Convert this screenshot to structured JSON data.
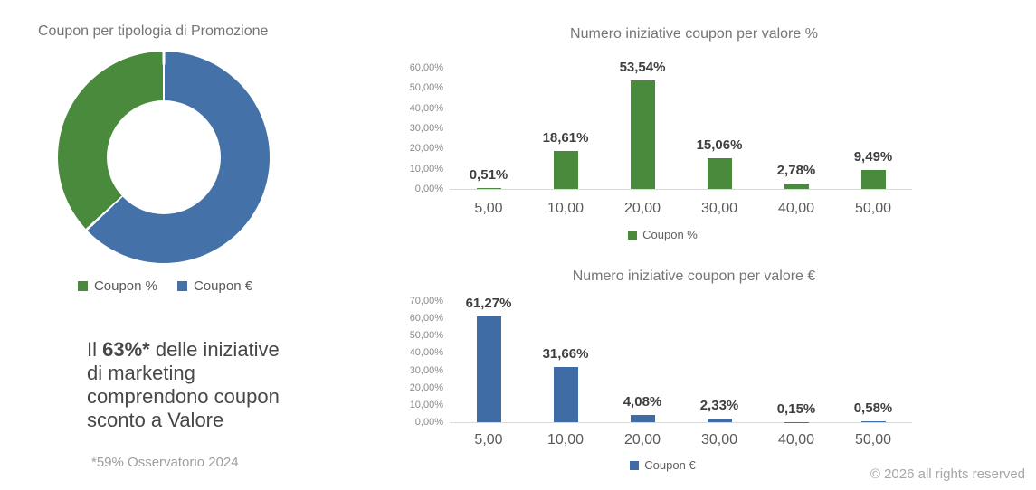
{
  "page": {
    "background": "#ffffff"
  },
  "colors": {
    "green": "#4A8A3C",
    "blue": "#3F6CA5",
    "donut_blue": "#4471A7",
    "axis_line": "#d9d9d9",
    "title_gray": "#757575",
    "tick_gray": "#8a8a8a",
    "xlabel_gray": "#595959",
    "value_label_gray": "#3f3f3f"
  },
  "donut": {
    "title": "Coupon per tipologia di Promozione",
    "legend": [
      {
        "label": "Coupon %",
        "color": "#4A8A3C"
      },
      {
        "label": "Coupon €",
        "color": "#4471A7"
      }
    ]
  },
  "headline": {
    "lead": "Il ",
    "bold": "63%*",
    "line1_rest": " delle iniziative",
    "line2": "di marketing",
    "line3": "comprendono coupon",
    "line4": "sconto a Valore"
  },
  "footnote": "*59% Osservatorio 2024",
  "footer": {
    "copyright": "© 2026 all rights reserved"
  },
  "chart_data": [
    {
      "id": "promo-donut",
      "type": "pie",
      "title": "Coupon per tipologia di Promozione",
      "legend_position": "bottom",
      "segments": [
        {
          "label": "Coupon €",
          "value": 63,
          "color": "#4471A7"
        },
        {
          "label": "Coupon %",
          "value": 37,
          "color": "#4A8A3C"
        }
      ]
    },
    {
      "id": "coupon-pct-bar",
      "type": "bar",
      "title": "Numero iniziative coupon per valore %",
      "categories": [
        "5,00",
        "10,00",
        "20,00",
        "30,00",
        "40,00",
        "50,00"
      ],
      "values": [
        0.51,
        18.61,
        53.54,
        15.06,
        2.78,
        9.49
      ],
      "value_labels": [
        "0,51%",
        "18,61%",
        "53,54%",
        "15,06%",
        "2,78%",
        "9,49%"
      ],
      "xlabel": "",
      "ylabel": "",
      "ylim": [
        0,
        60
      ],
      "ytick_labels": [
        "60,00%",
        "50,00%",
        "40,00%",
        "30,00%",
        "20,00%",
        "10,00%",
        "0,00%"
      ],
      "grid": false,
      "legend": "Coupon %",
      "legend_position": "bottom",
      "bar_color": "#4A8A3C"
    },
    {
      "id": "coupon-eur-bar",
      "type": "bar",
      "title": "Numero iniziative coupon per valore  €",
      "categories": [
        "5,00",
        "10,00",
        "20,00",
        "30,00",
        "40,00",
        "50,00"
      ],
      "values": [
        61.27,
        31.66,
        4.08,
        2.33,
        0.15,
        0.58
      ],
      "value_labels": [
        "61,27%",
        "31,66%",
        "4,08%",
        "2,33%",
        "0,15%",
        "0,58%"
      ],
      "xlabel": "",
      "ylabel": "",
      "ylim": [
        0,
        70
      ],
      "ytick_labels": [
        "70,00%",
        "60,00%",
        "50,00%",
        "40,00%",
        "30,00%",
        "20,00%",
        "10,00%",
        "0,00%"
      ],
      "grid": false,
      "legend": "Coupon €",
      "legend_position": "bottom",
      "bar_color": "#3F6CA5"
    }
  ]
}
